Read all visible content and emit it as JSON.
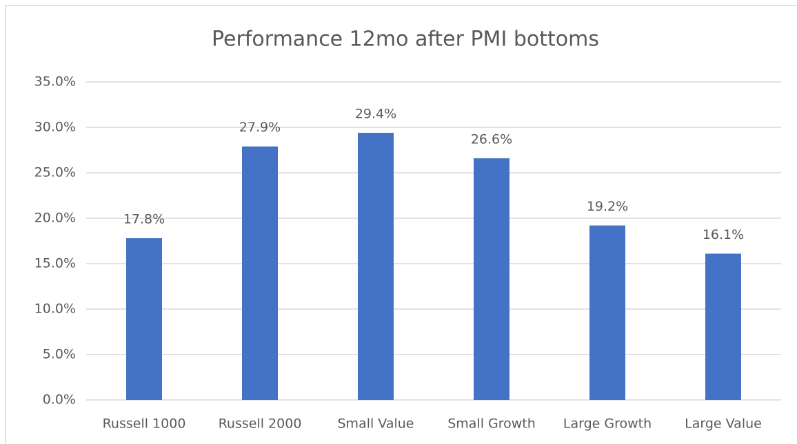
{
  "chart_data": {
    "type": "bar",
    "title": "Performance  12mo after PMI bottoms",
    "categories": [
      "Russell 1000",
      "Russell 2000",
      "Small Value",
      "Small Growth",
      "Large Growth",
      "Large Value"
    ],
    "values": [
      17.8,
      27.9,
      29.4,
      26.6,
      19.2,
      16.1
    ],
    "value_labels": [
      "17.8%",
      "27.9%",
      "29.4%",
      "26.6%",
      "19.2%",
      "16.1%"
    ],
    "color": "#4472c4",
    "ylim": [
      0,
      35
    ],
    "yticks": [
      {
        "value": 0,
        "label": "0.0%"
      },
      {
        "value": 5,
        "label": "5.0%"
      },
      {
        "value": 10,
        "label": "10.0%"
      },
      {
        "value": 15,
        "label": "15.0%"
      },
      {
        "value": 20,
        "label": "20.0%"
      },
      {
        "value": 25,
        "label": "25.0%"
      },
      {
        "value": 30,
        "label": "30.0%"
      },
      {
        "value": 35,
        "label": "35.0%"
      }
    ],
    "grid": true
  }
}
